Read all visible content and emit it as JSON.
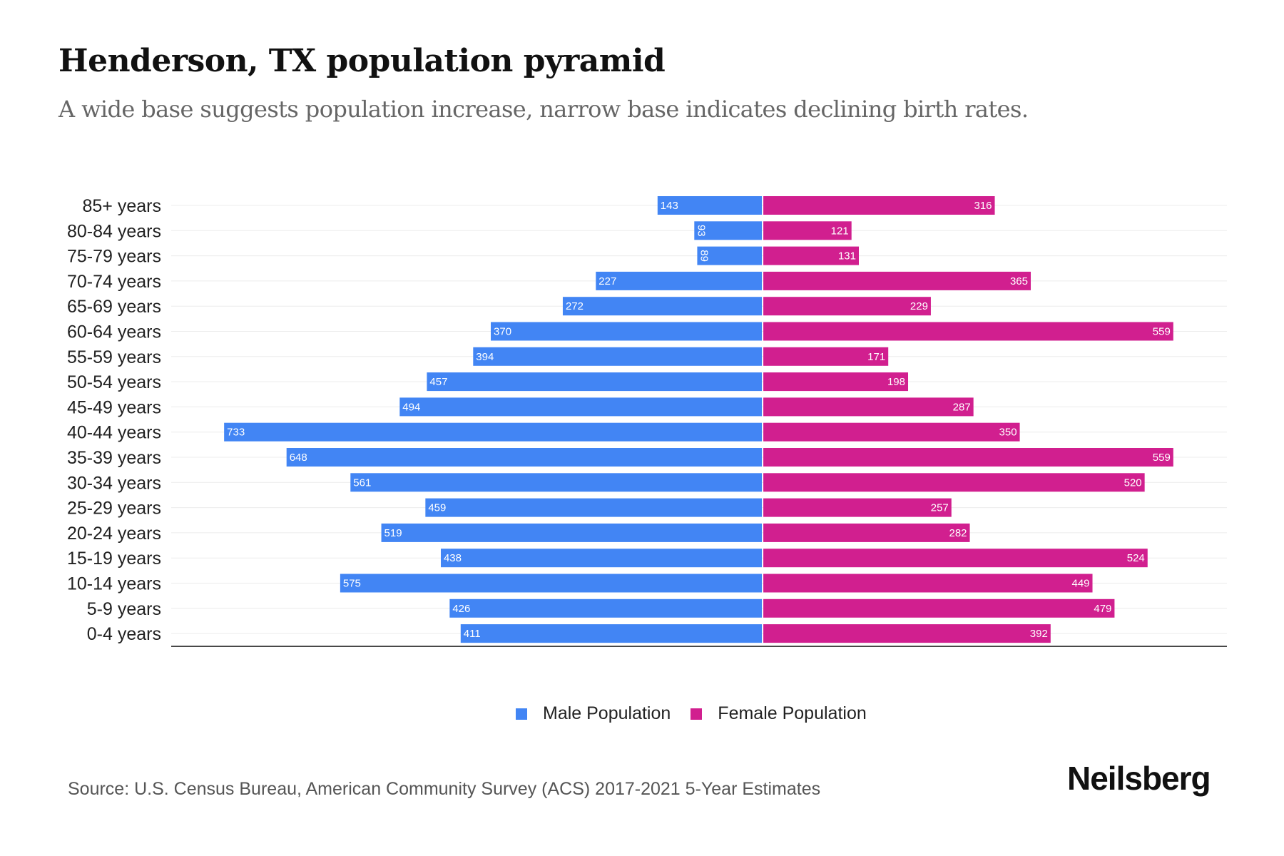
{
  "chart_data": {
    "type": "bar",
    "orientation": "horizontal-diverging",
    "title": "Henderson, TX population pyramid",
    "subtitle": "A wide base suggests population increase, narrow base indicates declining birth rates.",
    "xlabel": "",
    "ylabel": "",
    "categories": [
      "85+ years",
      "80-84 years",
      "75-79 years",
      "70-74 years",
      "65-69 years",
      "60-64 years",
      "55-59 years",
      "50-54 years",
      "45-49 years",
      "40-44 years",
      "35-39 years",
      "30-34 years",
      "25-29 years",
      "20-24 years",
      "15-19 years",
      "10-14 years",
      "5-9 years",
      "0-4 years"
    ],
    "series": [
      {
        "name": "Male Population",
        "color": "#4285F4",
        "side": "left",
        "values": [
          143,
          93,
          89,
          227,
          272,
          370,
          394,
          457,
          494,
          733,
          648,
          561,
          459,
          519,
          438,
          575,
          426,
          411
        ]
      },
      {
        "name": "Female Population",
        "color": "#D11F8F",
        "side": "right",
        "values": [
          316,
          121,
          131,
          365,
          229,
          559,
          171,
          198,
          287,
          350,
          559,
          520,
          257,
          282,
          524,
          449,
          479,
          392
        ]
      }
    ],
    "xlim": [
      -805,
      632
    ],
    "grid": true,
    "legend_position": "bottom-center"
  },
  "source": "Source: U.S. Census Bureau, American Community Survey (ACS) 2017-2021 5-Year Estimates",
  "brand": "Neilsberg"
}
